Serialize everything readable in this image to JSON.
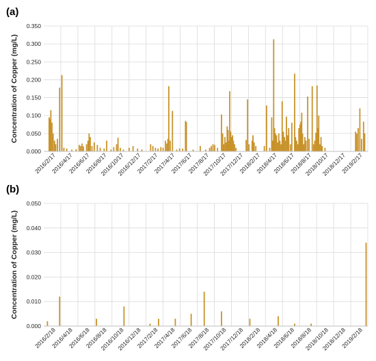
{
  "chart_data": [
    {
      "panel": "(a)",
      "type": "bar",
      "ylabel": "Concentration of Copper (mg/L)",
      "ylim": [
        0,
        0.35
      ],
      "yticks": [
        "0.000",
        "0.050",
        "0.100",
        "0.150",
        "0.200",
        "0.250",
        "0.300",
        "0.350"
      ],
      "xlim": [
        "2016-02-01",
        "2019-03-20"
      ],
      "xtick_labels": [
        "2016/2/17",
        "2016/4/17",
        "2016/6/17",
        "2016/8/17",
        "2016/10/17",
        "2016/12/17",
        "2017/2/17",
        "2017/4/17",
        "2017/6/17",
        "2017/8/17",
        "2017/10/17",
        "2017/12/17",
        "2018/2/17",
        "2018/4/17",
        "2018/6/17",
        "2018/8/17",
        "2018/10/17",
        "2018/12/17",
        "2019/2/17"
      ],
      "grid": true,
      "bar_color": "#C8922A",
      "points": [
        [
          "2016-02-20",
          0.095
        ],
        [
          "2016-02-23",
          0.09
        ],
        [
          "2016-02-26",
          0.115
        ],
        [
          "2016-03-01",
          0.08
        ],
        [
          "2016-03-05",
          0.05
        ],
        [
          "2016-03-10",
          0.03
        ],
        [
          "2016-03-14",
          0.02
        ],
        [
          "2016-03-20",
          0.035
        ],
        [
          "2016-03-28",
          0.178
        ],
        [
          "2016-04-05",
          0.213
        ],
        [
          "2016-04-12",
          0.01
        ],
        [
          "2016-04-22",
          0.008
        ],
        [
          "2016-05-10",
          0.005
        ],
        [
          "2016-05-25",
          0.006
        ],
        [
          "2016-06-05",
          0.018
        ],
        [
          "2016-06-10",
          0.015
        ],
        [
          "2016-06-15",
          0.022
        ],
        [
          "2016-06-20",
          0.014
        ],
        [
          "2016-07-01",
          0.02
        ],
        [
          "2016-07-06",
          0.03
        ],
        [
          "2016-07-10",
          0.05
        ],
        [
          "2016-07-14",
          0.04
        ],
        [
          "2016-07-20",
          0.015
        ],
        [
          "2016-07-28",
          0.025
        ],
        [
          "2016-08-08",
          0.018
        ],
        [
          "2016-08-18",
          0.01
        ],
        [
          "2016-09-01",
          0.008
        ],
        [
          "2016-09-10",
          0.03
        ],
        [
          "2016-09-25",
          0.005
        ],
        [
          "2016-10-05",
          0.012
        ],
        [
          "2016-10-15",
          0.02
        ],
        [
          "2016-10-20",
          0.038
        ],
        [
          "2016-10-28",
          0.01
        ],
        [
          "2016-11-08",
          0.005
        ],
        [
          "2016-11-28",
          0.01
        ],
        [
          "2016-12-12",
          0.015
        ],
        [
          "2016-12-28",
          0.008
        ],
        [
          "2017-01-12",
          0.005
        ],
        [
          "2017-02-12",
          0.02
        ],
        [
          "2017-02-20",
          0.015
        ],
        [
          "2017-03-01",
          0.01
        ],
        [
          "2017-03-10",
          0.008
        ],
        [
          "2017-03-20",
          0.012
        ],
        [
          "2017-03-28",
          0.01
        ],
        [
          "2017-04-05",
          0.03
        ],
        [
          "2017-04-10",
          0.022
        ],
        [
          "2017-04-14",
          0.035
        ],
        [
          "2017-04-17",
          0.182
        ],
        [
          "2017-04-22",
          0.03
        ],
        [
          "2017-04-30",
          0.113
        ],
        [
          "2017-05-15",
          0.005
        ],
        [
          "2017-05-25",
          0.008
        ],
        [
          "2017-06-05",
          0.008
        ],
        [
          "2017-06-15",
          0.085
        ],
        [
          "2017-06-18",
          0.082
        ],
        [
          "2017-07-12",
          0.005
        ],
        [
          "2017-08-06",
          0.015
        ],
        [
          "2017-08-25",
          0.005
        ],
        [
          "2017-09-08",
          0.01
        ],
        [
          "2017-09-14",
          0.015
        ],
        [
          "2017-09-20",
          0.02
        ],
        [
          "2017-09-26",
          0.018
        ],
        [
          "2017-10-06",
          0.01
        ],
        [
          "2017-10-20",
          0.103
        ],
        [
          "2017-10-24",
          0.05
        ],
        [
          "2017-10-28",
          0.02
        ],
        [
          "2017-11-01",
          0.04
        ],
        [
          "2017-11-05",
          0.025
        ],
        [
          "2017-11-09",
          0.07
        ],
        [
          "2017-11-12",
          0.06
        ],
        [
          "2017-11-15",
          0.03
        ],
        [
          "2017-11-18",
          0.168
        ],
        [
          "2017-11-21",
          0.055
        ],
        [
          "2017-11-24",
          0.04
        ],
        [
          "2017-11-28",
          0.045
        ],
        [
          "2017-12-01",
          0.03
        ],
        [
          "2017-12-05",
          0.02
        ],
        [
          "2017-12-10",
          0.01
        ],
        [
          "2018-01-15",
          0.032
        ],
        [
          "2018-01-20",
          0.145
        ],
        [
          "2018-01-25",
          0.02
        ],
        [
          "2018-02-05",
          0.03
        ],
        [
          "2018-02-08",
          0.045
        ],
        [
          "2018-02-12",
          0.025
        ],
        [
          "2018-02-18",
          0.015
        ],
        [
          "2018-03-20",
          0.015
        ],
        [
          "2018-03-28",
          0.128
        ],
        [
          "2018-04-08",
          0.01
        ],
        [
          "2018-04-15",
          0.095
        ],
        [
          "2018-04-18",
          0.03
        ],
        [
          "2018-04-22",
          0.313
        ],
        [
          "2018-04-25",
          0.065
        ],
        [
          "2018-04-28",
          0.05
        ],
        [
          "2018-05-02",
          0.045
        ],
        [
          "2018-05-06",
          0.025
        ],
        [
          "2018-05-10",
          0.05
        ],
        [
          "2018-05-14",
          0.03
        ],
        [
          "2018-05-18",
          0.02
        ],
        [
          "2018-05-22",
          0.14
        ],
        [
          "2018-05-26",
          0.055
        ],
        [
          "2018-05-30",
          0.04
        ],
        [
          "2018-06-02",
          0.03
        ],
        [
          "2018-06-06",
          0.097
        ],
        [
          "2018-06-10",
          0.045
        ],
        [
          "2018-06-14",
          0.065
        ],
        [
          "2018-06-20",
          0.02
        ],
        [
          "2018-06-25",
          0.08
        ],
        [
          "2018-07-05",
          0.217
        ],
        [
          "2018-07-08",
          0.04
        ],
        [
          "2018-07-12",
          0.03
        ],
        [
          "2018-07-16",
          0.02
        ],
        [
          "2018-07-20",
          0.065
        ],
        [
          "2018-07-24",
          0.075
        ],
        [
          "2018-07-27",
          0.083
        ],
        [
          "2018-07-30",
          0.108
        ],
        [
          "2018-08-02",
          0.05
        ],
        [
          "2018-08-06",
          0.02
        ],
        [
          "2018-08-10",
          0.04
        ],
        [
          "2018-08-14",
          0.03
        ],
        [
          "2018-08-20",
          0.153
        ],
        [
          "2018-08-25",
          0.035
        ],
        [
          "2018-09-05",
          0.182
        ],
        [
          "2018-09-10",
          0.02
        ],
        [
          "2018-09-14",
          0.03
        ],
        [
          "2018-09-18",
          0.052
        ],
        [
          "2018-09-22",
          0.184
        ],
        [
          "2018-09-25",
          0.065
        ],
        [
          "2018-09-28",
          0.1
        ],
        [
          "2018-10-02",
          0.02
        ],
        [
          "2018-10-06",
          0.04
        ],
        [
          "2018-10-10",
          0.015
        ],
        [
          "2018-10-20",
          0.01
        ],
        [
          "2019-02-05",
          0.055
        ],
        [
          "2019-02-09",
          0.05
        ],
        [
          "2019-02-14",
          0.065
        ],
        [
          "2019-02-20",
          0.12
        ],
        [
          "2019-02-26",
          0.035
        ],
        [
          "2019-03-05",
          0.083
        ],
        [
          "2019-03-09",
          0.05
        ]
      ]
    },
    {
      "panel": "(b)",
      "type": "bar",
      "ylabel": "Concentration of Copper (mg/L)",
      "ylim": [
        0,
        0.05
      ],
      "yticks": [
        "0.000",
        "0.010",
        "0.020",
        "0.030",
        "0.040",
        "0.050"
      ],
      "xlim": [
        "2016-02-01",
        "2019-03-20"
      ],
      "xtick_labels": [
        "2016/2/18",
        "2016/4/18",
        "2016/6/18",
        "2016/8/18",
        "2016/10/18",
        "2016/12/18",
        "2017/2/18",
        "2017/4/18",
        "2017/6/18",
        "2017/8/18",
        "2017/10/18",
        "2017/12/18",
        "2018/2/18",
        "2018/4/18",
        "2018/6/18",
        "2018/8/18",
        "2018/10/18",
        "2018/12/18",
        "2019/2/18"
      ],
      "grid": true,
      "bar_color": "#C8922A",
      "points": [
        [
          "2016-02-14",
          0.002
        ],
        [
          "2016-03-28",
          0.012
        ],
        [
          "2016-08-05",
          0.003
        ],
        [
          "2016-11-10",
          0.008
        ],
        [
          "2017-02-10",
          0.001
        ],
        [
          "2017-03-12",
          0.003
        ],
        [
          "2017-05-10",
          0.003
        ],
        [
          "2017-07-05",
          0.005
        ],
        [
          "2017-08-20",
          0.014
        ],
        [
          "2017-10-20",
          0.006
        ],
        [
          "2018-01-28",
          0.003
        ],
        [
          "2018-05-08",
          0.004
        ],
        [
          "2018-07-05",
          0.001
        ],
        [
          "2018-09-01",
          0.001
        ],
        [
          "2019-03-14",
          0.034
        ]
      ]
    }
  ]
}
